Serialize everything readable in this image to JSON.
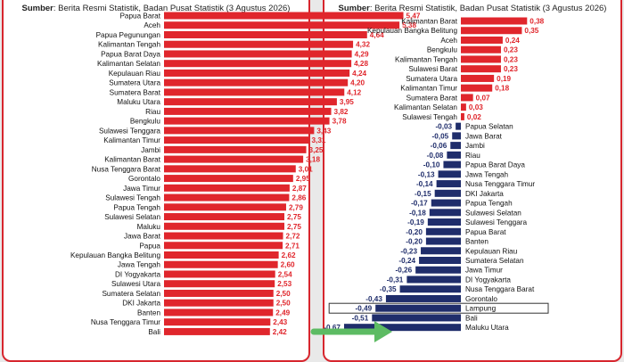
{
  "colors": {
    "positive_bar": "#e0262c",
    "negative_bar": "#1f2d6b",
    "positive_label": "#e0262c",
    "negative_label": "#1f2d6b",
    "arrow": "#5dbb63",
    "panel_border": "#d7262e",
    "highlight_box": "#333333"
  },
  "left_panel": {
    "source_bold": "Sumber",
    "source_text": ": Berita Resmi Statistik, Badan Pusat Statistik (3 Agustus 2026)"
  },
  "right_panel": {
    "source_bold": "Sumber",
    "source_text": ": Berita Resmi Statistik, Badan Pusat Statistik (3 Agustus 2026)"
  },
  "arrow_icon": "right-arrow",
  "chart_data": [
    {
      "type": "bar",
      "orientation": "horizontal",
      "title": "",
      "xlabel": "",
      "ylabel": "",
      "xlim": [
        0,
        5.5
      ],
      "categories": [
        "Papua Barat",
        "Aceh",
        "Papua Pegunungan",
        "Kalimantan Tengah",
        "Papua Barat Daya",
        "Kalimantan Selatan",
        "Kepulauan Riau",
        "Sumatera Utara",
        "Sumatera Barat",
        "Maluku Utara",
        "Riau",
        "Bengkulu",
        "Sulawesi Tenggara",
        "Kalimantan Timur",
        "Jambi",
        "Kalimantan Barat",
        "Nusa Tenggara Barat",
        "Gorontalo",
        "Jawa Timur",
        "Sulawesi Tengah",
        "Papua Tengah",
        "Sulawesi Selatan",
        "Maluku",
        "Jawa Barat",
        "Papua",
        "Kepulauan Bangka Belitung",
        "Jawa Tengah",
        "DI Yogyakarta",
        "Sulawesi Utara",
        "Sumatera Selatan",
        "DKI Jakarta",
        "Banten",
        "Nusa Tenggara Timur",
        "Bali"
      ],
      "labels": [
        "5,47",
        "5,38",
        "4,64",
        "4,32",
        "4,29",
        "4,28",
        "4,24",
        "4,20",
        "4,12",
        "3,95",
        "3,82",
        "3,78",
        "3,43",
        "3,31",
        "3,25",
        "3,18",
        "3,01",
        "2,95",
        "2,87",
        "2,86",
        "2,79",
        "2,75",
        "2,75",
        "2,72",
        "2,71",
        "2,62",
        "2,60",
        "2,54",
        "2,53",
        "2,50",
        "2,50",
        "2,49",
        "2,43",
        "2,42"
      ],
      "values": [
        5.47,
        5.38,
        4.64,
        4.32,
        4.29,
        4.28,
        4.24,
        4.2,
        4.12,
        3.95,
        3.82,
        3.78,
        3.43,
        3.31,
        3.25,
        3.18,
        3.01,
        2.95,
        2.87,
        2.86,
        2.79,
        2.75,
        2.75,
        2.72,
        2.71,
        2.62,
        2.6,
        2.54,
        2.53,
        2.5,
        2.5,
        2.49,
        2.43,
        2.42
      ]
    },
    {
      "type": "bar",
      "orientation": "horizontal",
      "title": "",
      "xlabel": "",
      "ylabel": "",
      "xlim": [
        -0.7,
        0.4
      ],
      "categories": [
        "Kalimantan Barat",
        "Kepulauan Bangka Belitung",
        "Aceh",
        "Bengkulu",
        "Kalimantan Tengah",
        "Sulawesi Barat",
        "Sumatera Utara",
        "Kalimantan Timur",
        "Sumatera Barat",
        "Kalimantan Selatan",
        "Sulawesi Tengah",
        "Papua Selatan",
        "Jawa Barat",
        "Jambi",
        "Riau",
        "Papua Barat Daya",
        "Jawa Tengah",
        "Nusa Tenggara Timur",
        "DKI Jakarta",
        "Papua Tengah",
        "Sulawesi Selatan",
        "Sulawesi Tenggara",
        "Papua Barat",
        "Banten",
        "Kepulauan Riau",
        "Sumatera Selatan",
        "Jawa Timur",
        "DI Yogyakarta",
        "Nusa Tenggara Barat",
        "Gorontalo",
        "Lampung",
        "Bali",
        "Maluku Utara"
      ],
      "labels": [
        "0,38",
        "0,35",
        "0,24",
        "0,23",
        "0,23",
        "0,23",
        "0,19",
        "0,18",
        "0,07",
        "0,03",
        "0,02",
        "-0,03",
        "-0,05",
        "-0,06",
        "-0,08",
        "-0,10",
        "-0,13",
        "-0,14",
        "-0,15",
        "-0,17",
        "-0,18",
        "-0,19",
        "-0,20",
        "-0,20",
        "-0,23",
        "-0,24",
        "-0,26",
        "-0,31",
        "-0,35",
        "-0,43",
        "-0,49",
        "-0,51",
        "-0,67"
      ],
      "values": [
        0.38,
        0.35,
        0.24,
        0.23,
        0.23,
        0.23,
        0.19,
        0.18,
        0.07,
        0.03,
        0.02,
        -0.03,
        -0.05,
        -0.06,
        -0.08,
        -0.1,
        -0.13,
        -0.14,
        -0.15,
        -0.17,
        -0.18,
        -0.19,
        -0.2,
        -0.2,
        -0.23,
        -0.24,
        -0.26,
        -0.31,
        -0.35,
        -0.43,
        -0.49,
        -0.51,
        -0.67
      ],
      "highlighted_category": "Lampung"
    }
  ]
}
